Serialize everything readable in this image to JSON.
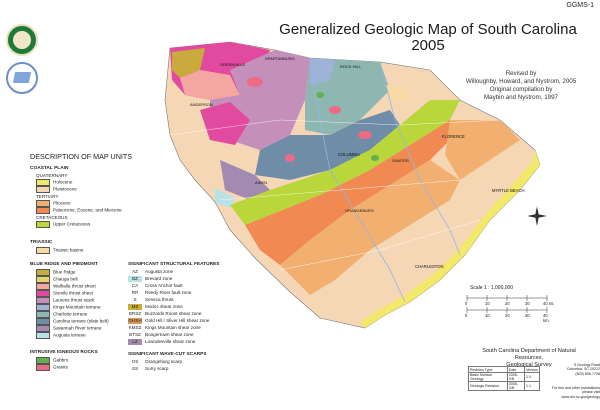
{
  "sheet_code": "GGMS-1",
  "title_line1": "Generalized Geologic Map of South Carolina",
  "title_line2": "2005",
  "credits": {
    "line1": "Revised by",
    "line2": "Willoughby, Howard, and Nystrom, 2005",
    "line3": "Original compilation by",
    "line4": "Maybin and Nystrom, 1997"
  },
  "legend": {
    "heading": "DESCRIPTION OF MAP UNITS",
    "coastal_plain": {
      "title": "COASTAL PLAIN",
      "quaternary": "QUATERNARY",
      "holocene": "Holocene",
      "pleistocene": "Pleistocene",
      "tertiary": "TERTIARY",
      "pliocene": "Pliocene",
      "paleocene": "Paleocene, Eocene, and Miocene",
      "cretaceous": "CRETACEOUS",
      "upper_cretaceous": "Upper Cretaceous"
    },
    "triassic": {
      "title": "TRIASSIC",
      "basins": "Triassic basins"
    },
    "piedmont": {
      "title": "BLUE RIDGE AND PIEDMONT",
      "items": [
        "Blue Ridge",
        "Chauga belt",
        "Walhalla thrust sheet",
        "Sixmile thrust sheet",
        "Laurens thrust stack",
        "Kings Mountain terrane",
        "Charlotte terrane",
        "Carolina terrane (slate belt)",
        "Savannah River terrane",
        "Augusta terrane"
      ]
    },
    "intrusive": {
      "title": "INTRUSIVE IGNEOUS ROCKS",
      "gabbro": "Gabbro",
      "granite": "Granite"
    },
    "structural": {
      "title": "SIGNIFICANT STRUCTURAL FEATURES",
      "codes": [
        "AZ",
        "BZ",
        "CA",
        "RR",
        "S",
        "MZ",
        "BRSZ",
        "GHSH",
        "KMSZ",
        "BTSZ",
        "LZ"
      ],
      "names": [
        "Augusta zone",
        "Brevard zone",
        "Cross Anchor fault",
        "Reedy River fault zone",
        "Seneca thrust",
        "Modoc shear zone",
        "Buzzards Roost shear zone",
        "Gold Hill / Silver Hill shear zone",
        "Kings Mountain shear zone",
        "Boogertown shear zone",
        "Lowndesville shear zone"
      ]
    },
    "scarps": {
      "title": "SIGNIFICANT WAVE-CUT SCARPS",
      "codes": [
        "OS",
        "SS"
      ],
      "names": [
        "Orangeburg scarp",
        "Surry scarp"
      ]
    }
  },
  "map_labels": {
    "columbia": "COLUMBIA",
    "florence": "FLORENCE",
    "myrtle_beach": "MYRTLE BEACH",
    "charleston": "CHARLESTON",
    "greenville": "GREENVILLE",
    "anderson": "ANDERSON",
    "spartanburg": "SPARTANBURG",
    "orangeburg": "ORANGEBURG",
    "aiken": "AIKEN",
    "rock_hill": "ROCK HILL",
    "sumter": "SUMTER"
  },
  "scale": {
    "title": "Scale 1 : 1,000,000",
    "miles": [
      "0",
      "10",
      "20",
      "30",
      "40 mi."
    ],
    "km": [
      "0",
      "10",
      "20",
      "30",
      "40 km."
    ]
  },
  "agency": {
    "line1": "South Carolina Department of Natural Resources,",
    "line2": "Geological Survey",
    "address1": "5 Geology Road",
    "address2": "Columbia, SC 29212",
    "phone": "(803) 896-7708"
  },
  "revision_table": {
    "headers": [
      "Revision Type",
      "Date",
      "Version"
    ],
    "rows": [
      [
        "Basic Surface Geology",
        "2005-GB",
        "1.0"
      ],
      [
        "Geologic Revision",
        "2005-GB",
        "1.1"
      ]
    ]
  },
  "note": "For this and other publications please visit www.dnr.sc.gov/geology",
  "colors": {
    "holocene": "#f2e86a",
    "pleistocene": "#f6d7b5",
    "pliocene": "#f2b070",
    "paleocene": "#f08a52",
    "upper_cretaceous": "#b9d63a",
    "triassic": "#f8d9a6",
    "blue_ridge": "#c9aa3d",
    "chauga": "#e9d46a",
    "walhalla": "#f4a6a3",
    "sixmile": "#e24aa0",
    "laurens": "#c48fba",
    "kings_mountain": "#9fb2d8",
    "charlotte": "#8fb7b1",
    "carolina": "#6f8da7",
    "savannah_river": "#a38ab1",
    "augusta": "#b7e3e8",
    "gabbro": "#63b04e",
    "granite": "#ee6b86"
  }
}
